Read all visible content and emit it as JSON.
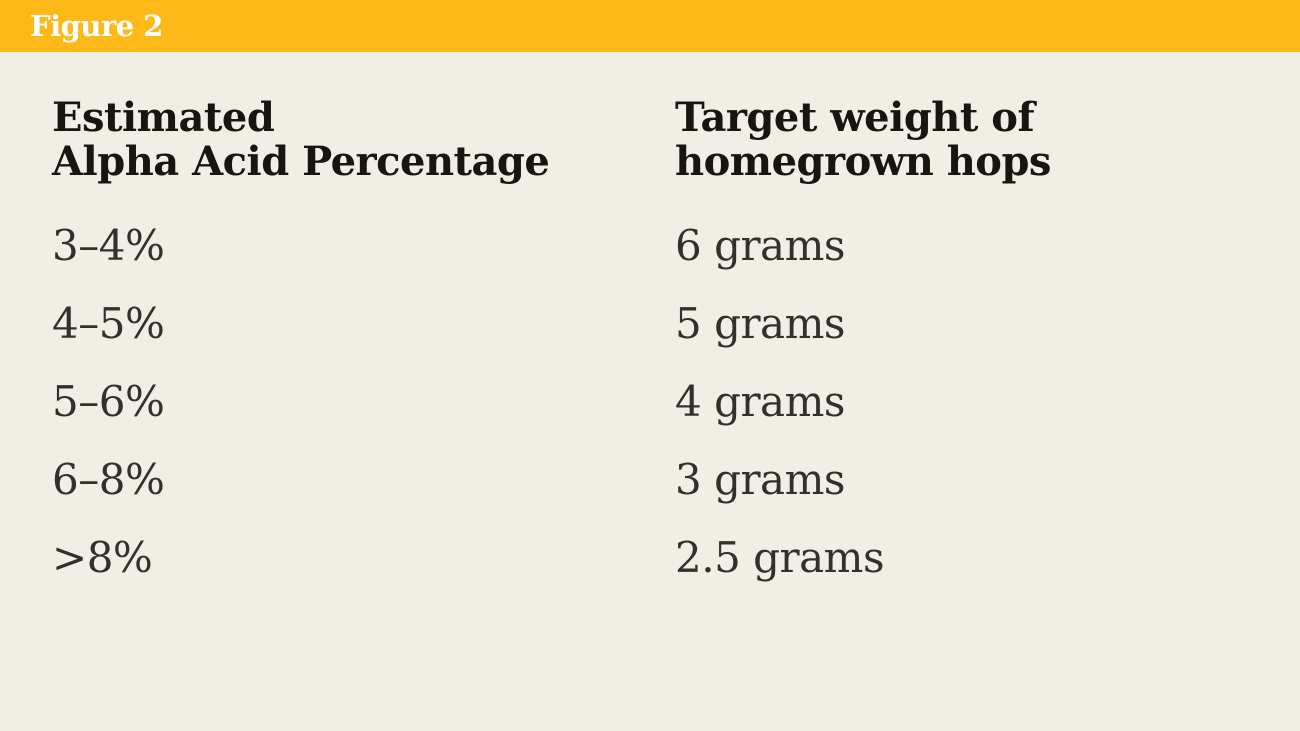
{
  "figure_label": "Figure 2",
  "colors": {
    "bar_background": "#fcb917",
    "page_background": "#f0eee5",
    "figure_label_color": "#ffffff",
    "header_text_color": "#17150f",
    "body_text_color": "#32302a"
  },
  "table": {
    "header_alpha": {
      "line1": "Estimated",
      "line2": "Alpha Acid Percentage"
    },
    "header_weight": {
      "line1": "Target weight of",
      "line2": "homegrown hops"
    },
    "rows": [
      {
        "alpha": "3–4%",
        "weight": "6 grams"
      },
      {
        "alpha": "4–5%",
        "weight": "5 grams"
      },
      {
        "alpha": "5–6%",
        "weight": "4 grams"
      },
      {
        "alpha": "6–8%",
        "weight": "3 grams"
      },
      {
        "alpha": ">8%",
        "weight": "2.5 grams"
      }
    ]
  },
  "chart_data": {
    "type": "table",
    "title": "Figure 2",
    "columns": [
      "Estimated Alpha Acid Percentage",
      "Target weight of homegrown hops"
    ],
    "rows": [
      [
        "3–4%",
        "6 grams"
      ],
      [
        "4–5%",
        "5 grams"
      ],
      [
        "5–6%",
        "4 grams"
      ],
      [
        "6–8%",
        "3 grams"
      ],
      [
        ">8%",
        "2.5 grams"
      ]
    ],
    "weights_grams": [
      6,
      5,
      4,
      3,
      2.5
    ],
    "alpha_acid_ranges_pct": [
      [
        3,
        4
      ],
      [
        4,
        5
      ],
      [
        5,
        6
      ],
      [
        6,
        8
      ],
      [
        8,
        null
      ]
    ]
  }
}
